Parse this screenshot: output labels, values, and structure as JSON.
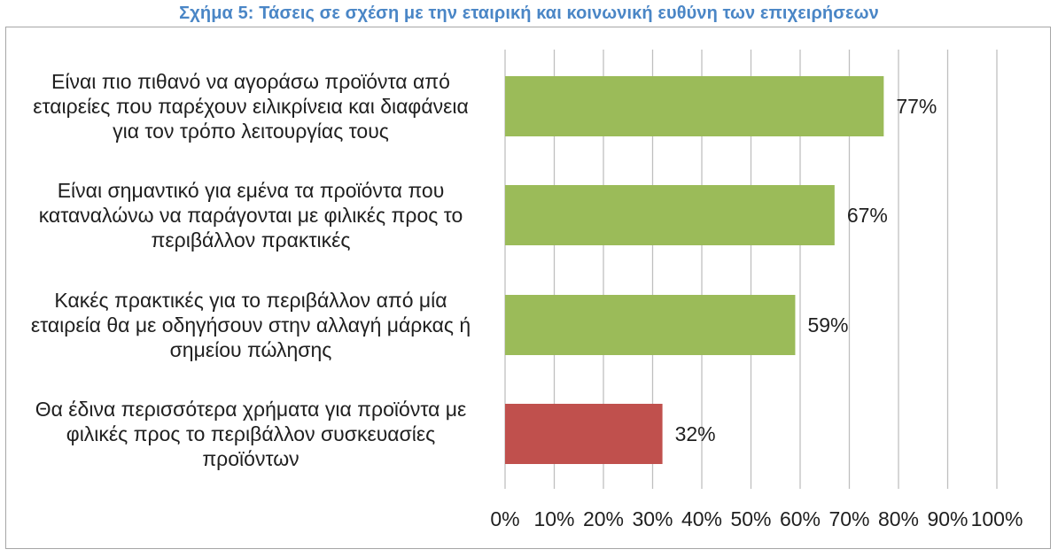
{
  "chart_data": {
    "type": "bar",
    "orientation": "horizontal",
    "title": "Σχήμα 5: Τάσεις σε σχέση με την εταιρική και κοινωνική ευθύνη των επιχειρήσεων",
    "categories": [
      [
        "Είναι πιο πιθανό να αγοράσω προϊόντα από",
        "εταιρείες που παρέχουν ειλικρίνεια και διαφάνεια",
        "για τον τρόπο λειτουργίας τους"
      ],
      [
        "Είναι σημαντικό για εμένα τα προϊόντα που",
        "καταναλώνω να παράγονται με φιλικές προς το",
        "περιβάλλον πρακτικές"
      ],
      [
        "Κακές πρακτικές για το περιβάλλον από μία",
        "εταιρεία θα με οδηγήσουν στην αλλαγή μάρκας ή",
        "σημείου πώλησης"
      ],
      [
        "Θα έδινα περισσότερα χρήματα για προϊόντα με",
        "φιλικές προς το περιβάλλον συσκευασίες",
        "προϊόντων"
      ]
    ],
    "values": [
      77,
      67,
      59,
      32
    ],
    "value_labels": [
      "77%",
      "67%",
      "59%",
      "32%"
    ],
    "bar_colors": [
      "#9bbb59",
      "#9bbb59",
      "#9bbb59",
      "#c0504d"
    ],
    "xlim": [
      0,
      100
    ],
    "xticks": [
      0,
      10,
      20,
      30,
      40,
      50,
      60,
      70,
      80,
      90,
      100
    ],
    "xtick_labels": [
      "0%",
      "10%",
      "20%",
      "30%",
      "40%",
      "50%",
      "60%",
      "70%",
      "80%",
      "90%",
      "100%"
    ],
    "grid": "vertical",
    "legend": "none",
    "colors": {
      "title": "#4a86c6",
      "grid": "#bfbfbf",
      "text": "#1f1f1f"
    }
  }
}
